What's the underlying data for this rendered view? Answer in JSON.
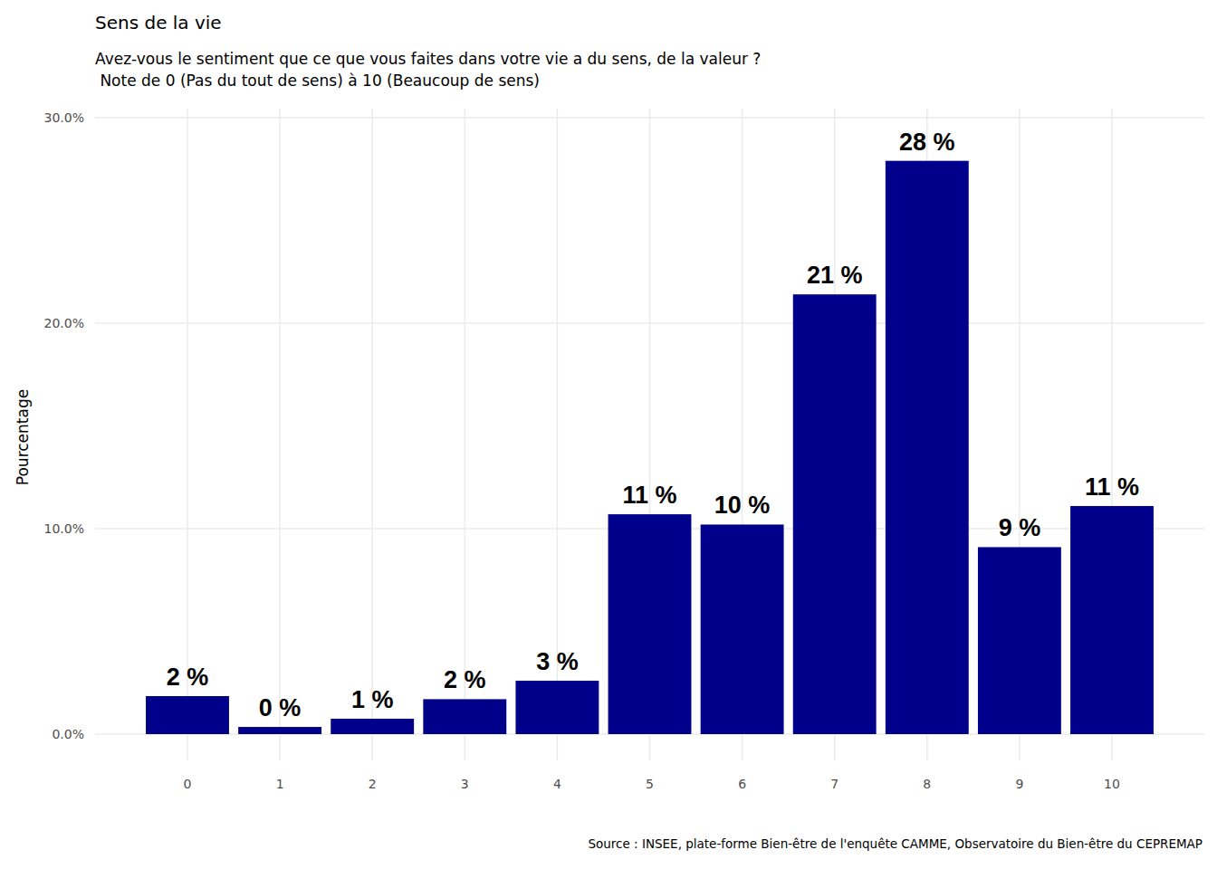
{
  "chart_data": {
    "type": "bar",
    "title": "Sens de la vie",
    "subtitle": [
      "Avez-vous le sentiment que ce que vous faites dans votre vie a du sens, de la valeur ?",
      " Note de 0 (Pas du tout de sens) à 10 (Beaucoup de sens)"
    ],
    "y_label": "Pourcentage",
    "source": "Source : INSEE, plate-forme Bien-être de l'enquête CAMME, Observatoire du Bien-être du CEPREMAP",
    "categories": [
      "0",
      "1",
      "2",
      "3",
      "4",
      "5",
      "6",
      "7",
      "8",
      "9",
      "10"
    ],
    "values": [
      1.85,
      0.35,
      0.75,
      1.7,
      2.6,
      10.7,
      10.2,
      21.4,
      27.9,
      9.1,
      11.1
    ],
    "value_labels": [
      "2 %",
      "0 %",
      "1 %",
      "2 %",
      "3 %",
      "11 %",
      "10 %",
      "21 %",
      "28 %",
      "9 %",
      "11 %"
    ],
    "data_labels": true,
    "color": "#00008b",
    "ylim": [
      0,
      30
    ],
    "yticks": [
      {
        "value": 0,
        "label": "0.0%"
      },
      {
        "value": 10,
        "label": "10.0%"
      },
      {
        "value": 20,
        "label": "20.0%"
      },
      {
        "value": 30,
        "label": "30.0%"
      }
    ],
    "grid": true
  }
}
